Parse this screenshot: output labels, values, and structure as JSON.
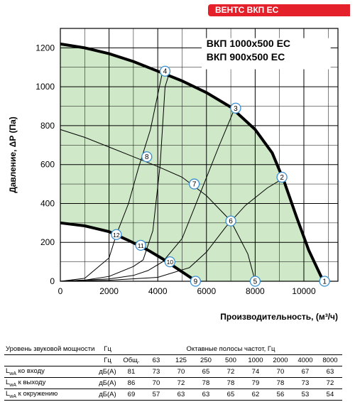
{
  "badge": "ВЕНТС ВКП ЕС",
  "chart_data": {
    "type": "line",
    "ylabel": "Давление, ΔP (Па)",
    "xlabel": "Производительность, (м³/ч)",
    "xlim": [
      0,
      11400
    ],
    "ylim": [
      0,
      1300
    ],
    "xticks": [
      0,
      2000,
      4000,
      6000,
      8000,
      10000
    ],
    "yticks": [
      0,
      200,
      400,
      600,
      800,
      1000,
      1200
    ],
    "legend": [
      "ВКП 1000х500 ЕС",
      "ВКП 900х500 ЕС"
    ],
    "fill_color": "#cfe9c8",
    "max_curve": [
      [
        0,
        1220
      ],
      [
        1000,
        1200
      ],
      [
        2000,
        1170
      ],
      [
        3000,
        1130
      ],
      [
        4000,
        1080
      ],
      [
        5000,
        1030
      ],
      [
        6000,
        970
      ],
      [
        7000,
        895
      ],
      [
        8000,
        780
      ],
      [
        8700,
        660
      ],
      [
        9200,
        510
      ],
      [
        9700,
        330
      ],
      [
        10200,
        160
      ],
      [
        10800,
        0
      ]
    ],
    "min_curve": [
      [
        0,
        300
      ],
      [
        1000,
        285
      ],
      [
        2000,
        255
      ],
      [
        2800,
        210
      ],
      [
        3600,
        160
      ],
      [
        4200,
        115
      ],
      [
        4800,
        65
      ],
      [
        5400,
        15
      ],
      [
        5550,
        0
      ]
    ],
    "system_curves": [
      [
        [
          0,
          0
        ],
        [
          1000,
          6
        ],
        [
          2000,
          25
        ],
        [
          3000,
          76
        ],
        [
          3400,
          110
        ],
        [
          3800,
          260
        ],
        [
          4100,
          600
        ],
        [
          4300,
          1000
        ],
        [
          4500,
          1080
        ]
      ],
      [
        [
          0,
          0
        ],
        [
          2000,
          12
        ],
        [
          3000,
          30
        ],
        [
          3600,
          55
        ],
        [
          4200,
          100
        ],
        [
          5000,
          220
        ],
        [
          5800,
          470
        ],
        [
          6500,
          690
        ],
        [
          7200,
          900
        ]
      ],
      [
        [
          0,
          0
        ],
        [
          2000,
          5
        ],
        [
          4000,
          20
        ],
        [
          5300,
          70
        ],
        [
          6000,
          150
        ],
        [
          6800,
          280
        ],
        [
          7600,
          390
        ],
        [
          8500,
          480
        ],
        [
          9300,
          540
        ]
      ],
      [
        [
          0,
          0
        ],
        [
          1000,
          15
        ],
        [
          2000,
          120
        ],
        [
          2300,
          240
        ],
        [
          2800,
          400
        ],
        [
          3200,
          580
        ],
        [
          3700,
          780
        ],
        [
          4000,
          960
        ],
        [
          4200,
          1080
        ]
      ]
    ],
    "decline_curves": [
      [
        [
          0,
          780
        ],
        [
          1000,
          740
        ],
        [
          2000,
          690
        ],
        [
          3000,
          640
        ],
        [
          4000,
          590
        ],
        [
          5000,
          535
        ],
        [
          6000,
          440
        ],
        [
          7000,
          310
        ],
        [
          7700,
          140
        ],
        [
          8000,
          0
        ]
      ]
    ],
    "points": [
      {
        "label": "1",
        "x": 10850,
        "y": 0
      },
      {
        "label": "2",
        "x": 9100,
        "y": 535
      },
      {
        "label": "3",
        "x": 7200,
        "y": 890
      },
      {
        "label": "4",
        "x": 4300,
        "y": 1080
      },
      {
        "label": "5",
        "x": 8000,
        "y": 0
      },
      {
        "label": "6",
        "x": 7000,
        "y": 310
      },
      {
        "label": "7",
        "x": 5500,
        "y": 500
      },
      {
        "label": "8",
        "x": 3550,
        "y": 640
      },
      {
        "label": "9",
        "x": 5550,
        "y": 0
      },
      {
        "label": "10",
        "x": 4500,
        "y": 100
      },
      {
        "label": "11",
        "x": 3300,
        "y": 185
      },
      {
        "label": "12",
        "x": 2300,
        "y": 240
      }
    ]
  },
  "sound_table": {
    "title": "Уровень звуковой мощности",
    "unit_header": "Гц",
    "octave_header": "Октавные полосы частот, Гц",
    "columns": [
      "Общ.",
      "63",
      "125",
      "250",
      "500",
      "1000",
      "2000",
      "4000",
      "8000"
    ],
    "rows": [
      {
        "label_prefix": "L",
        "label_sub": "wA",
        "label_rest": " ко входу",
        "unit": "дБ(А)",
        "values": [
          "81",
          "73",
          "70",
          "65",
          "72",
          "74",
          "70",
          "67",
          "63"
        ]
      },
      {
        "label_prefix": "L",
        "label_sub": "wA",
        "label_rest": " к выходу",
        "unit": "дБ(А)",
        "values": [
          "86",
          "70",
          "72",
          "78",
          "78",
          "79",
          "78",
          "73",
          "72"
        ]
      },
      {
        "label_prefix": "L",
        "label_sub": "wA",
        "label_rest": " к окружению",
        "unit": "дБ(А)",
        "values": [
          "69",
          "57",
          "63",
          "63",
          "65",
          "62",
          "56",
          "53",
          "54"
        ]
      }
    ]
  }
}
